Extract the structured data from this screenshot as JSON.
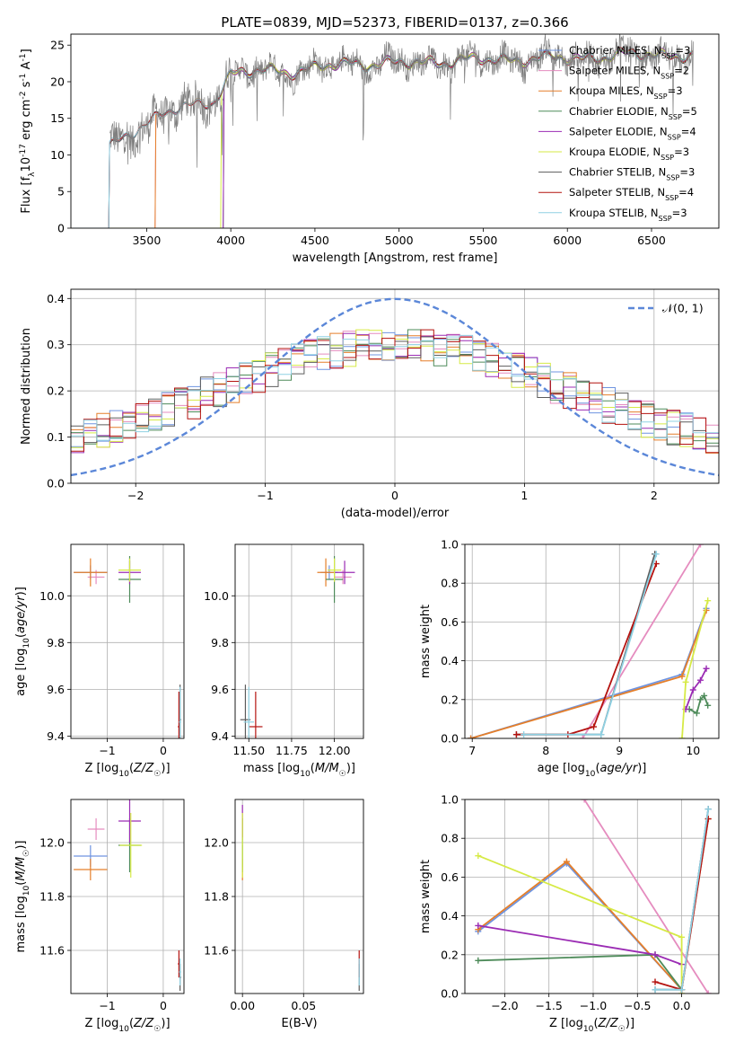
{
  "figure_title": "PLATE=0839, MJD=52373, FIBERID=0137, z=0.366",
  "models": [
    {
      "name": "Chabrier MILES",
      "nssp": "3",
      "color": "#6f94e0"
    },
    {
      "name": "Salpeter MILES",
      "nssp": "2",
      "color": "#e58cbf"
    },
    {
      "name": "Kroupa MILES",
      "nssp": "3",
      "color": "#e57f2a"
    },
    {
      "name": "Chabrier ELODIE",
      "nssp": "5",
      "color": "#4e8b5a"
    },
    {
      "name": "Salpeter ELODIE",
      "nssp": "4",
      "color": "#9b2cb4"
    },
    {
      "name": "Kroupa ELODIE",
      "nssp": "3",
      "color": "#d6ea45"
    },
    {
      "name": "Chabrier STELIB",
      "nssp": "3",
      "color": "#5c5c5c"
    },
    {
      "name": "Salpeter STELIB",
      "nssp": "4",
      "color": "#b4120f"
    },
    {
      "name": "Kroupa STELIB",
      "nssp": "3",
      "color": "#8fd1e3"
    }
  ],
  "chart_data": [
    {
      "id": "spectrum",
      "type": "line",
      "xlabel": "wavelength [Angstrom, rest frame]",
      "ylabel": "Flux [f$_\\lambda$10$^{-17}$ erg cm$^{-2}$ s$^{-1}$ A$^{-1}$]",
      "xlim": [
        3050,
        6900
      ],
      "ylim": [
        0,
        26.5
      ],
      "xticks": [
        3500,
        4000,
        4500,
        5000,
        5500,
        6000,
        6500
      ],
      "yticks": [
        0,
        5,
        10,
        15,
        20,
        25
      ],
      "data_color": "#808080",
      "data_range": [
        3280,
        6750
      ],
      "model_start": [
        3280,
        3555,
        3555,
        3960,
        3960,
        3945,
        3280,
        3280,
        3280
      ],
      "continuum": [
        [
          3280,
          11
        ],
        [
          3400,
          13
        ],
        [
          3600,
          15.5
        ],
        [
          3700,
          16.5
        ],
        [
          3800,
          17
        ],
        [
          3900,
          17.5
        ],
        [
          4000,
          21
        ],
        [
          4200,
          21.5
        ],
        [
          4400,
          21.5
        ],
        [
          4700,
          22.5
        ],
        [
          5000,
          22.5
        ],
        [
          5500,
          23
        ],
        [
          6000,
          23.2
        ],
        [
          6500,
          23.8
        ],
        [
          6750,
          23.5
        ]
      ],
      "legend_loc": "upper right",
      "grid": false
    },
    {
      "id": "residuals",
      "type": "step",
      "xlabel": "(data-model)/error",
      "ylabel": "Normed distribution",
      "xlim": [
        -2.5,
        2.5
      ],
      "ylim": [
        0,
        0.42
      ],
      "xticks": [
        -2,
        -1,
        0,
        1,
        2
      ],
      "yticks": [
        0.0,
        0.1,
        0.2,
        0.3,
        0.4
      ],
      "gaussian": {
        "label": "$\\mathcal{N}(0,1)$",
        "mean": 0,
        "sigma": 1,
        "color": "#5b87d8"
      },
      "bin_width": 0.1,
      "legend_loc": "upper right",
      "grid": true
    },
    {
      "id": "age_vs_Z",
      "type": "errorbar",
      "xlabel": "Z [log$_{10}$($Z/Z_\\odot$)]",
      "ylabel": "age  [log$_{10}$($age/yr$)]",
      "xlim": [
        -1.65,
        0.37
      ],
      "ylim": [
        9.39,
        10.22
      ],
      "xticks": [
        -1,
        0
      ],
      "yticks": [
        9.4,
        9.6,
        9.8,
        10.0
      ],
      "points": [
        {
          "model": 0,
          "x": -1.3,
          "y": 10.1,
          "xerr": 0.3,
          "yerr": 0.03
        },
        {
          "model": 1,
          "x": -1.2,
          "y": 10.08,
          "xerr": 0.15,
          "yerr": 0.03
        },
        {
          "model": 2,
          "x": -1.3,
          "y": 10.1,
          "xerr": 0.3,
          "yerr": 0.06
        },
        {
          "model": 3,
          "x": -0.6,
          "y": 10.07,
          "xerr": 0.2,
          "yerr": 0.1
        },
        {
          "model": 4,
          "x": -0.6,
          "y": 10.1,
          "xerr": 0.2,
          "yerr": 0.05
        },
        {
          "model": 5,
          "x": -0.6,
          "y": 10.11,
          "xerr": 0.2,
          "yerr": 0.05
        },
        {
          "model": 6,
          "x": 0.3,
          "y": 9.47,
          "xerr": 0.02,
          "yerr": 0.15
        },
        {
          "model": 7,
          "x": 0.28,
          "y": 9.44,
          "xerr": 0.02,
          "yerr": 0.15
        },
        {
          "model": 8,
          "x": 0.3,
          "y": 9.46,
          "xerr": 0.02,
          "yerr": 0.15
        }
      ],
      "grid": true
    },
    {
      "id": "age_vs_mass",
      "type": "errorbar",
      "xlabel": "mass [log$_{10}$($M/M_\\odot$)]",
      "ylabel": "",
      "xlim": [
        11.42,
        12.17
      ],
      "ylim": [
        9.39,
        10.22
      ],
      "xticks": [
        11.5,
        11.75,
        12.0
      ],
      "yticks": [
        9.4,
        9.6,
        9.8,
        10.0
      ],
      "points": [
        {
          "model": 0,
          "x": 11.97,
          "y": 10.1,
          "xerr": 0.05,
          "yerr": 0.03
        },
        {
          "model": 1,
          "x": 12.05,
          "y": 10.08,
          "xerr": 0.05,
          "yerr": 0.03
        },
        {
          "model": 2,
          "x": 11.95,
          "y": 10.1,
          "xerr": 0.05,
          "yerr": 0.06
        },
        {
          "model": 3,
          "x": 12.0,
          "y": 10.07,
          "xerr": 0.05,
          "yerr": 0.1
        },
        {
          "model": 4,
          "x": 12.06,
          "y": 10.1,
          "xerr": 0.06,
          "yerr": 0.05
        },
        {
          "model": 5,
          "x": 12.0,
          "y": 10.11,
          "xerr": 0.04,
          "yerr": 0.05
        },
        {
          "model": 6,
          "x": 11.48,
          "y": 9.47,
          "xerr": 0.03,
          "yerr": 0.15
        },
        {
          "model": 7,
          "x": 11.54,
          "y": 9.44,
          "xerr": 0.04,
          "yerr": 0.15
        },
        {
          "model": 8,
          "x": 11.5,
          "y": 9.46,
          "xerr": 0.03,
          "yerr": 0.15
        }
      ],
      "grid": true
    },
    {
      "id": "weight_vs_age",
      "type": "line",
      "xlabel": "age  [log$_{10}$($age/yr$)]",
      "ylabel": "mass weight",
      "xlim": [
        6.9,
        10.35
      ],
      "ylim": [
        0,
        1.0
      ],
      "xticks": [
        7,
        8,
        9,
        10
      ],
      "yticks": [
        0.0,
        0.2,
        0.4,
        0.6,
        0.8,
        1.0
      ],
      "series": [
        {
          "model": 0,
          "x": [
            6.98,
            9.85,
            10.18
          ],
          "y": [
            0.0,
            0.33,
            0.67
          ]
        },
        {
          "model": 1,
          "x": [
            8.5,
            10.1
          ],
          "y": [
            0.0,
            1.0
          ]
        },
        {
          "model": 2,
          "x": [
            6.98,
            9.85,
            10.18
          ],
          "y": [
            0.0,
            0.32,
            0.66
          ]
        },
        {
          "model": 3,
          "x": [
            9.95,
            10.05,
            10.1,
            10.15,
            10.2
          ],
          "y": [
            0.15,
            0.13,
            0.2,
            0.22,
            0.17
          ]
        },
        {
          "model": 4,
          "x": [
            9.9,
            10.0,
            10.1,
            10.18
          ],
          "y": [
            0.15,
            0.25,
            0.3,
            0.36
          ]
        },
        {
          "model": 5,
          "x": [
            9.85,
            9.9,
            10.2
          ],
          "y": [
            0.0,
            0.29,
            0.71
          ]
        },
        {
          "model": 6,
          "x": [
            7.6,
            8.75,
            9.48
          ],
          "y": [
            0.02,
            0.02,
            0.95
          ]
        },
        {
          "model": 7,
          "x": [
            7.6,
            8.3,
            8.65,
            9.5
          ],
          "y": [
            0.02,
            0.02,
            0.06,
            0.9
          ]
        },
        {
          "model": 8,
          "x": [
            7.7,
            8.75,
            9.5
          ],
          "y": [
            0.02,
            0.02,
            0.95
          ]
        }
      ],
      "grid": true
    },
    {
      "id": "mass_vs_Z",
      "type": "errorbar",
      "xlabel": "Z [log$_{10}$($Z/Z_\\odot$)]",
      "ylabel": "mass [log$_{10}$($M/M_\\odot$)]",
      "xlim": [
        -1.65,
        0.37
      ],
      "ylim": [
        11.44,
        12.16
      ],
      "xticks": [
        -1,
        0
      ],
      "yticks": [
        11.6,
        11.8,
        12.0
      ],
      "points": [
        {
          "model": 0,
          "x": -1.3,
          "y": 11.95,
          "xerr": 0.3,
          "yerr": 0.04
        },
        {
          "model": 1,
          "x": -1.2,
          "y": 12.05,
          "xerr": 0.15,
          "yerr": 0.04
        },
        {
          "model": 2,
          "x": -1.3,
          "y": 11.9,
          "xerr": 0.3,
          "yerr": 0.04
        },
        {
          "model": 3,
          "x": -0.6,
          "y": 11.99,
          "xerr": 0.2,
          "yerr": 0.1
        },
        {
          "model": 4,
          "x": -0.6,
          "y": 12.08,
          "xerr": 0.2,
          "yerr": 0.08
        },
        {
          "model": 5,
          "x": -0.58,
          "y": 11.99,
          "xerr": 0.2,
          "yerr": 0.12
        },
        {
          "model": 6,
          "x": 0.3,
          "y": 11.5,
          "xerr": 0.02,
          "yerr": 0.05
        },
        {
          "model": 7,
          "x": 0.28,
          "y": 11.55,
          "xerr": 0.02,
          "yerr": 0.05
        },
        {
          "model": 8,
          "x": 0.3,
          "y": 11.52,
          "xerr": 0.02,
          "yerr": 0.05
        }
      ],
      "grid": true
    },
    {
      "id": "mass_vs_ebv",
      "type": "errorbar",
      "xlabel": "E(B-V)",
      "ylabel": "",
      "xlim": [
        -0.006,
        0.099
      ],
      "ylim": [
        11.44,
        12.16
      ],
      "xticks": [
        0.0,
        0.05
      ],
      "yticks": [
        11.6,
        11.8,
        12.0
      ],
      "points": [
        {
          "model": 0,
          "x": 0.0,
          "y": 11.95,
          "xerr": 0.0,
          "yerr": 0.04
        },
        {
          "model": 1,
          "x": 0.0,
          "y": 12.05,
          "xerr": 0.0,
          "yerr": 0.04
        },
        {
          "model": 2,
          "x": 0.0,
          "y": 11.9,
          "xerr": 0.0,
          "yerr": 0.04
        },
        {
          "model": 3,
          "x": 0.0,
          "y": 11.99,
          "xerr": 0.0,
          "yerr": 0.1
        },
        {
          "model": 4,
          "x": 0.0,
          "y": 12.08,
          "xerr": 0.0,
          "yerr": 0.06
        },
        {
          "model": 5,
          "x": 0.0,
          "y": 11.99,
          "xerr": 0.0,
          "yerr": 0.12
        },
        {
          "model": 6,
          "x": 0.0955,
          "y": 11.5,
          "xerr": 0.0,
          "yerr": 0.05
        },
        {
          "model": 7,
          "x": 0.0955,
          "y": 11.55,
          "xerr": 0.0,
          "yerr": 0.05
        },
        {
          "model": 8,
          "x": 0.0955,
          "y": 11.52,
          "xerr": 0.0,
          "yerr": 0.05
        }
      ],
      "grid": true
    },
    {
      "id": "weight_vs_Z",
      "type": "line",
      "xlabel": "Z [log$_{10}$($Z/Z_\\odot$)]",
      "ylabel": "mass weight",
      "xlim": [
        -2.45,
        0.42
      ],
      "ylim": [
        0,
        1.0
      ],
      "xticks": [
        -2.0,
        -1.5,
        -1.0,
        -0.5,
        0.0
      ],
      "yticks": [
        0.0,
        0.2,
        0.4,
        0.6,
        0.8,
        1.0
      ],
      "series": [
        {
          "model": 0,
          "x": [
            -2.3,
            -1.3,
            0.0,
            0.3
          ],
          "y": [
            0.32,
            0.67,
            0.02,
            0.95
          ]
        },
        {
          "model": 1,
          "x": [
            -1.1,
            0.3
          ],
          "y": [
            1.0,
            0.0
          ]
        },
        {
          "model": 2,
          "x": [
            -2.3,
            -1.3,
            0.0,
            0.3
          ],
          "y": [
            0.33,
            0.68,
            0.02,
            0.9
          ]
        },
        {
          "model": 3,
          "x": [
            -2.3,
            -0.3,
            0.0
          ],
          "y": [
            0.17,
            0.2,
            0.02
          ]
        },
        {
          "model": 4,
          "x": [
            -2.3,
            -0.3,
            0.0
          ],
          "y": [
            0.35,
            0.2,
            0.15
          ]
        },
        {
          "model": 5,
          "x": [
            -2.3,
            0.0,
            0.0
          ],
          "y": [
            0.71,
            0.29,
            0.0
          ]
        },
        {
          "model": 6,
          "x": [
            -0.3,
            0.0,
            0.3
          ],
          "y": [
            0.02,
            0.02,
            0.95
          ]
        },
        {
          "model": 7,
          "x": [
            -0.3,
            0.0,
            0.3
          ],
          "y": [
            0.06,
            0.02,
            0.9
          ]
        },
        {
          "model": 8,
          "x": [
            -0.3,
            0.0,
            0.3
          ],
          "y": [
            0.02,
            0.02,
            0.95
          ]
        }
      ],
      "grid": true
    }
  ]
}
